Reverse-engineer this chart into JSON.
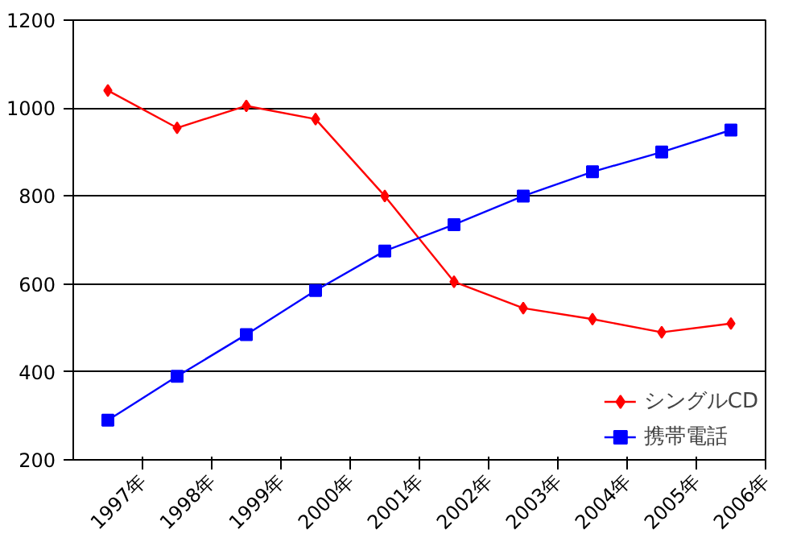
{
  "chart_data": {
    "type": "line",
    "categories": [
      "1997年",
      "1998年",
      "1999年",
      "2000年",
      "2001年",
      "2002年",
      "2003年",
      "2004年",
      "2005年",
      "2006年"
    ],
    "series": [
      {
        "name": "シングルCD",
        "color": "#ff0000",
        "marker": "diamond",
        "values": [
          1040,
          955,
          1005,
          975,
          800,
          605,
          545,
          520,
          490,
          510
        ]
      },
      {
        "name": "携帯電話",
        "color": "#0000ff",
        "marker": "square",
        "values": [
          290,
          390,
          485,
          585,
          675,
          735,
          800,
          855,
          900,
          950
        ]
      }
    ],
    "ylim": [
      200,
      1200
    ],
    "yticks": [
      200,
      400,
      600,
      800,
      1000,
      1200
    ],
    "grid": "y",
    "legend": "bottom right"
  }
}
